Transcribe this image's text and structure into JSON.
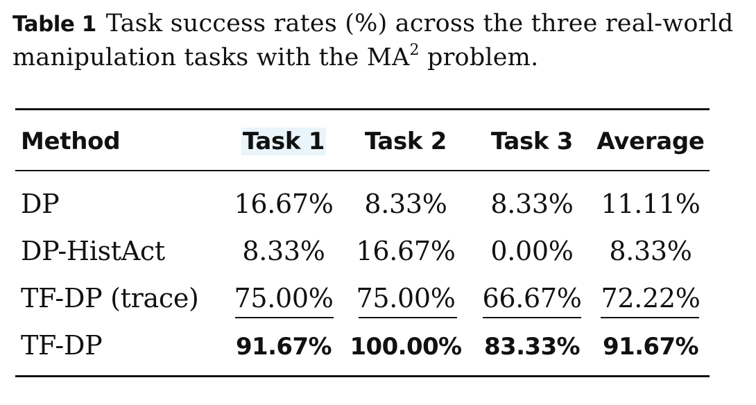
{
  "caption": {
    "label": "Table 1",
    "text_before_sup": "Task success rates (%) across the three real-world manipulation tasks with the MA",
    "sup": "2",
    "text_after_sup": " problem."
  },
  "table": {
    "headers": [
      "Method",
      "Task 1",
      "Task 2",
      "Task 3",
      "Average"
    ],
    "rows": [
      {
        "method": "DP",
        "values": [
          "16.67%",
          "8.33%",
          "8.33%",
          "11.11%"
        ]
      },
      {
        "method": "DP-HistAct",
        "values": [
          "8.33%",
          "16.67%",
          "0.00%",
          "8.33%"
        ]
      },
      {
        "method": "TF-DP (trace)",
        "values": [
          "75.00%",
          "75.00%",
          "66.67%",
          "72.22%"
        ]
      },
      {
        "method": "TF-DP",
        "values": [
          "91.67%",
          "100.00%",
          "83.33%",
          "91.67%"
        ]
      }
    ]
  }
}
